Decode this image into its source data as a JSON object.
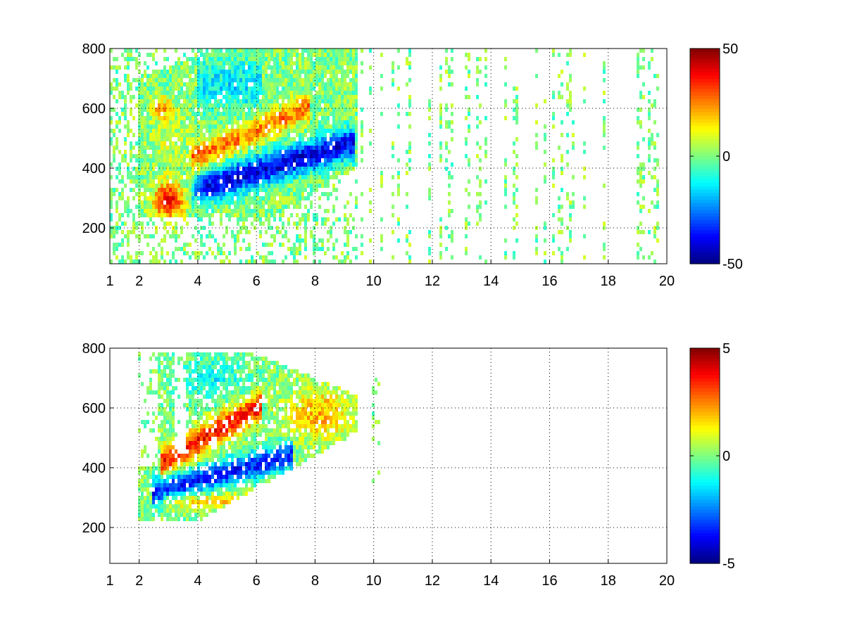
{
  "chart_data": [
    {
      "type": "heatmap",
      "panel": "top",
      "title": "",
      "xlabel": "",
      "ylabel": "",
      "xlim": [
        1,
        20
      ],
      "ylim": [
        80,
        800
      ],
      "x_ticks": [
        1,
        2,
        4,
        6,
        8,
        10,
        12,
        14,
        16,
        18,
        20
      ],
      "y_ticks": [
        200,
        400,
        600,
        800
      ],
      "grid": true,
      "grid_style": "dotted",
      "colormap": "jet",
      "colorbar": {
        "min": -50,
        "max": 50,
        "ticks": [
          50,
          0,
          -50
        ],
        "placement": "right"
      },
      "dense_region": {
        "x_range": [
          1,
          9.5
        ],
        "y_range": [
          80,
          800
        ]
      },
      "sparse_region": {
        "x_range": [
          9.5,
          20
        ],
        "y_range": [
          80,
          800
        ],
        "value_range": [
          -10,
          10
        ]
      },
      "features": [
        {
          "label": "positive core",
          "x": 3.0,
          "y": 290,
          "value": 40
        },
        {
          "label": "positive blob",
          "x": 2.8,
          "y": 600,
          "value": 20
        },
        {
          "label": "positive band",
          "x_range": [
            4,
            7.5
          ],
          "y_center_at_x4": 440,
          "y_center_at_x7": 570,
          "value": 25
        },
        {
          "label": "negative band",
          "x_range": [
            3.8,
            9.3
          ],
          "y_center_at_x4": 330,
          "y_center_at_x9": 480,
          "value": -40
        },
        {
          "label": "negative upper",
          "x_range": [
            4,
            6
          ],
          "y_range": [
            600,
            760
          ],
          "value": -15
        }
      ]
    },
    {
      "type": "heatmap",
      "panel": "bottom",
      "title": "",
      "xlabel": "",
      "ylabel": "",
      "xlim": [
        1,
        20
      ],
      "ylim": [
        80,
        800
      ],
      "x_ticks": [
        1,
        2,
        4,
        6,
        8,
        10,
        12,
        14,
        16,
        18,
        20
      ],
      "y_ticks": [
        200,
        400,
        600,
        800
      ],
      "grid": true,
      "grid_style": "dotted",
      "colormap": "jet",
      "colorbar": {
        "min": -5,
        "max": 5,
        "ticks": [
          5,
          0,
          -5
        ],
        "placement": "right"
      },
      "dense_region": {
        "x_range": [
          2,
          9.5
        ],
        "y_range": [
          220,
          780
        ]
      },
      "features": [
        {
          "label": "positive band",
          "x_range": [
            3,
            6
          ],
          "y_center_at_x3": 430,
          "y_center_at_x6": 600,
          "value": 3.5
        },
        {
          "label": "negative band",
          "x_range": [
            2.5,
            7
          ],
          "y_center_at_x3": 330,
          "y_center_at_x7": 440,
          "value": -3.5
        },
        {
          "label": "positive lower",
          "x_range": [
            3,
            5.5
          ],
          "y_range": [
            270,
            310
          ],
          "value": 1.5
        },
        {
          "label": "positive right",
          "x_range": [
            7,
            9.2
          ],
          "y_range": [
            520,
            640
          ],
          "value": 2
        }
      ]
    }
  ]
}
